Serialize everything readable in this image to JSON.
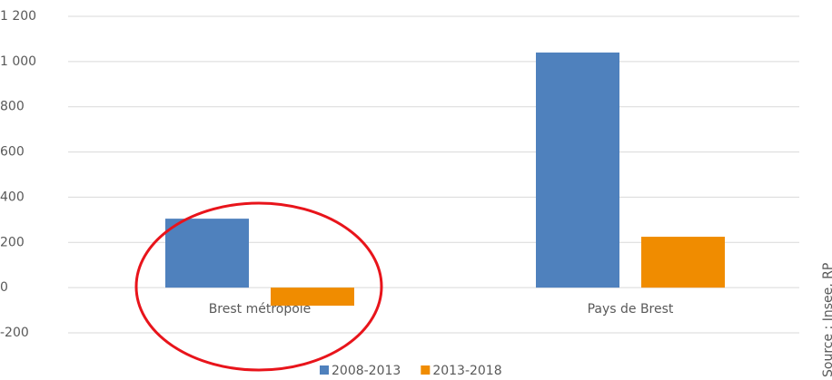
{
  "chart_data": {
    "type": "bar",
    "categories": [
      "Brest métropole",
      "Pays de Brest"
    ],
    "series": [
      {
        "name": "2008-2013",
        "color": "#4f81bd",
        "values": [
          305,
          1040
        ]
      },
      {
        "name": "2013-2018",
        "color": "#f08c00",
        "values": [
          -80,
          225
        ]
      }
    ],
    "ylim": [
      -200,
      1200
    ],
    "yticks": [
      -200,
      0,
      200,
      400,
      600,
      800,
      {
        "value": 1000,
        "label": "1 000"
      },
      {
        "value": 1200,
        "label": "1 200"
      }
    ],
    "grid": true,
    "legend": "bottom",
    "annotations": [
      "Source : Insee, RP"
    ]
  }
}
